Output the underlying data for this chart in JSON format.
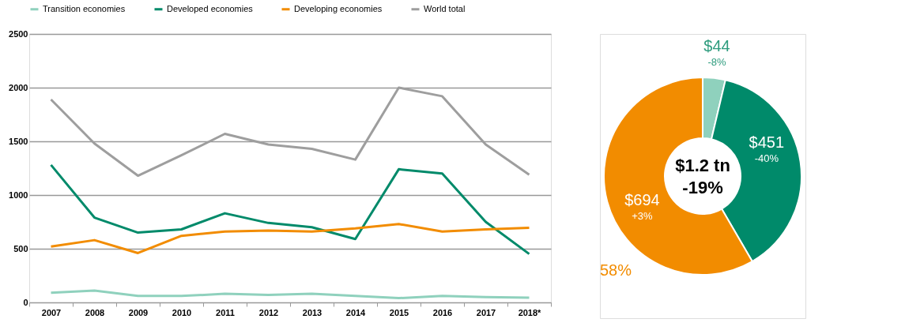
{
  "chart_data": [
    {
      "type": "line",
      "categories": [
        "2007",
        "2008",
        "2009",
        "2010",
        "2011",
        "2012",
        "2013",
        "2014",
        "2015",
        "2016",
        "2017",
        "2018*"
      ],
      "series": [
        {
          "name": "Transition economies",
          "color": "#8fd1bd",
          "values": [
            90,
            110,
            60,
            60,
            80,
            70,
            80,
            60,
            40,
            60,
            50,
            44
          ]
        },
        {
          "name": "Developed economies",
          "color": "#008a6a",
          "values": [
            1280,
            790,
            650,
            680,
            830,
            740,
            700,
            590,
            1240,
            1200,
            750,
            451
          ]
        },
        {
          "name": "Developing economies",
          "color": "#f28c00",
          "values": [
            520,
            580,
            460,
            620,
            660,
            670,
            660,
            690,
            730,
            660,
            680,
            694
          ]
        },
        {
          "name": "World total",
          "color": "#9e9e9e",
          "values": [
            1890,
            1480,
            1180,
            1370,
            1570,
            1470,
            1430,
            1330,
            2000,
            1920,
            1470,
            1190
          ]
        }
      ],
      "ylim": [
        0,
        2500
      ],
      "yticks": [
        0,
        500,
        1000,
        1500,
        2000,
        2500
      ],
      "grid": "y",
      "legend": "top",
      "marker": "none",
      "line_style": "solid"
    },
    {
      "type": "donut",
      "categories": [
        null,
        null,
        null
      ],
      "values": [
        44,
        451,
        694
      ],
      "colors": [
        "#8fd1bd",
        "#008a6a",
        "#f28c00"
      ],
      "value_labels": [
        "$44",
        "$451",
        "$694"
      ],
      "annotations": [
        "-8%",
        "-40%",
        "+3%",
        "$1.2 tn",
        "-19%",
        "58%"
      ]
    }
  ]
}
